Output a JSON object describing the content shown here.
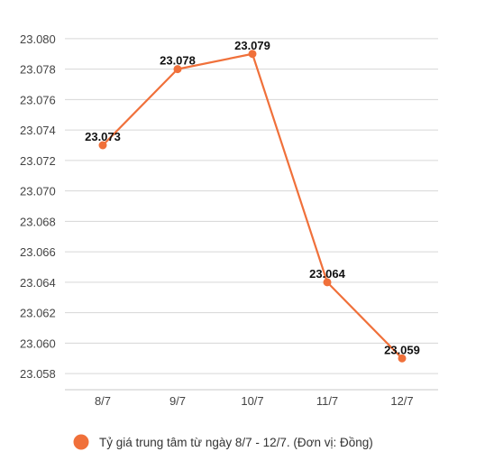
{
  "chart_data": {
    "type": "line",
    "categories": [
      "8/7",
      "9/7",
      "10/7",
      "11/7",
      "12/7"
    ],
    "series": [
      {
        "name": "Tỷ giá trung tâm từ ngày 8/7 - 12/7. (Đơn vị: Đồng)",
        "values": [
          23073,
          23078,
          23079,
          23064,
          23059
        ],
        "labels": [
          "23.073",
          "23.078",
          "23.079",
          "23.064",
          "23.059"
        ],
        "color": "#f0703a"
      }
    ],
    "ylim": [
      23057,
      23081
    ],
    "yticks": [
      23080,
      23078,
      23076,
      23074,
      23072,
      23070,
      23068,
      23066,
      23064,
      23062,
      23060,
      23058
    ],
    "ytick_labels": [
      "23.080",
      "23.078",
      "23.076",
      "23.074",
      "23.072",
      "23.070",
      "23.068",
      "23.066",
      "23.064",
      "23.062",
      "23.060",
      "23.058"
    ],
    "grid": true,
    "legend": "bottom",
    "title": "",
    "xlabel": "",
    "ylabel": ""
  },
  "colors": {
    "line": "#f0703a",
    "grid": "#d6d6d6",
    "axis_text": "#444444"
  }
}
